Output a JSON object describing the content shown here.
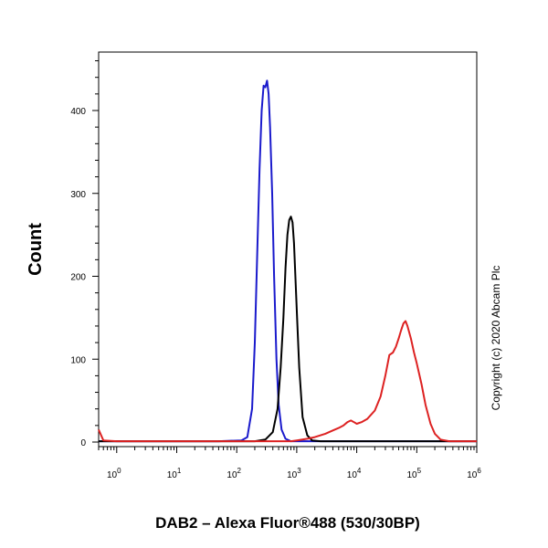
{
  "chart_data": {
    "type": "line",
    "xlabel": "DAB2 – Alexa Fluor®488 (530/30BP)",
    "ylabel": "Count",
    "x_scale": "log",
    "xlim": [
      0.5,
      1000000
    ],
    "ylim": [
      0,
      470
    ],
    "x_ticks": [
      {
        "value": 1,
        "base": "10",
        "exp": "0"
      },
      {
        "value": 10,
        "base": "10",
        "exp": "1"
      },
      {
        "value": 100,
        "base": "10",
        "exp": "2"
      },
      {
        "value": 1000,
        "base": "10",
        "exp": "3"
      },
      {
        "value": 10000,
        "base": "10",
        "exp": "4"
      },
      {
        "value": 100000,
        "base": "10",
        "exp": "5"
      },
      {
        "value": 1000000,
        "base": "10",
        "exp": "6"
      }
    ],
    "y_ticks": [
      0,
      100,
      200,
      300,
      400
    ],
    "grid": false,
    "series": [
      {
        "color": "#1a1acc",
        "points": [
          [
            0.5,
            1
          ],
          [
            50,
            1
          ],
          [
            120,
            2
          ],
          [
            150,
            6
          ],
          [
            180,
            40
          ],
          [
            200,
            120
          ],
          [
            220,
            230
          ],
          [
            240,
            330
          ],
          [
            260,
            400
          ],
          [
            280,
            430
          ],
          [
            300,
            428
          ],
          [
            320,
            436
          ],
          [
            340,
            420
          ],
          [
            360,
            380
          ],
          [
            390,
            300
          ],
          [
            420,
            200
          ],
          [
            460,
            100
          ],
          [
            500,
            45
          ],
          [
            560,
            15
          ],
          [
            650,
            4
          ],
          [
            800,
            1
          ],
          [
            1000000,
            1
          ]
        ]
      },
      {
        "color": "#000000",
        "points": [
          [
            0.5,
            1
          ],
          [
            200,
            1
          ],
          [
            300,
            3
          ],
          [
            400,
            12
          ],
          [
            480,
            40
          ],
          [
            540,
            90
          ],
          [
            600,
            150
          ],
          [
            650,
            210
          ],
          [
            700,
            250
          ],
          [
            750,
            268
          ],
          [
            800,
            272
          ],
          [
            850,
            265
          ],
          [
            900,
            240
          ],
          [
            1000,
            160
          ],
          [
            1100,
            90
          ],
          [
            1250,
            30
          ],
          [
            1500,
            8
          ],
          [
            1800,
            2
          ],
          [
            2500,
            1
          ],
          [
            1000000,
            1
          ]
        ]
      },
      {
        "color": "#dd2222",
        "points": [
          [
            0.5,
            15
          ],
          [
            0.6,
            2
          ],
          [
            1,
            1
          ],
          [
            800,
            1
          ],
          [
            1000,
            2
          ],
          [
            1500,
            4
          ],
          [
            2000,
            6
          ],
          [
            3000,
            10
          ],
          [
            4000,
            14
          ],
          [
            5000,
            17
          ],
          [
            6000,
            20
          ],
          [
            7000,
            24
          ],
          [
            8000,
            26
          ],
          [
            9000,
            24
          ],
          [
            10000,
            22
          ],
          [
            12000,
            24
          ],
          [
            15000,
            28
          ],
          [
            20000,
            38
          ],
          [
            25000,
            55
          ],
          [
            30000,
            80
          ],
          [
            35000,
            105
          ],
          [
            40000,
            108
          ],
          [
            45000,
            115
          ],
          [
            50000,
            125
          ],
          [
            55000,
            135
          ],
          [
            60000,
            143
          ],
          [
            65000,
            146
          ],
          [
            70000,
            140
          ],
          [
            80000,
            125
          ],
          [
            90000,
            108
          ],
          [
            100000,
            95
          ],
          [
            120000,
            70
          ],
          [
            140000,
            45
          ],
          [
            170000,
            22
          ],
          [
            200000,
            10
          ],
          [
            250000,
            3
          ],
          [
            350000,
            1
          ],
          [
            1000000,
            1
          ]
        ]
      }
    ]
  },
  "copyright": "Copyright (c) 2020 Abcam Plc"
}
